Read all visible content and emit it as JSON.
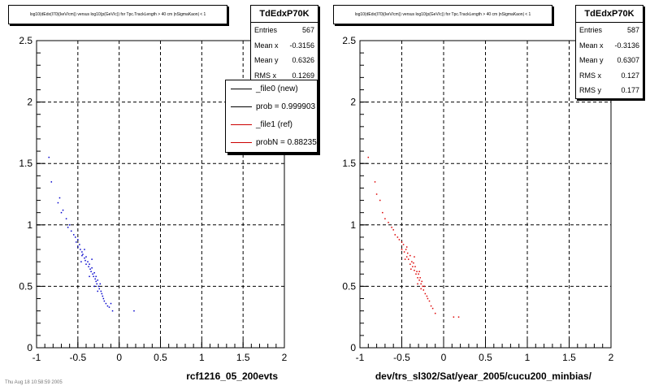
{
  "panels": [
    {
      "title": "log10(dEdx(I70)(keV/cm)) versus log10(p(GeV/c)) for Tpc.TrackLength > 40 cm |nSigmaKaon| < 1",
      "stats": {
        "name": "TdEdxP70K",
        "rows": [
          {
            "key": "Entries",
            "value": "567"
          },
          {
            "key": "Mean x",
            "value": "-0.3156"
          },
          {
            "key": "Mean y",
            "value": "0.6326"
          },
          {
            "key": "RMS x",
            "value": "0.1269"
          }
        ]
      },
      "legend": [
        {
          "label": "_file0 (new)",
          "color": "#000000"
        },
        {
          "label": "prob = 0.999903",
          "color": "#000000"
        },
        {
          "label": "_file1 (ref)",
          "color": "#cc0000"
        },
        {
          "label": "probN = 0.882353",
          "color": "#cc0000"
        }
      ],
      "footer": "rcf1216_05_200evts"
    },
    {
      "title": "log10(dEdx(I70)(keV/cm)) versus log10(p(GeV/c)) for Tpc.TrackLength > 40 cm |nSigmaKaon| < 1",
      "stats": {
        "name": "TdEdxP70K",
        "rows": [
          {
            "key": "Entries",
            "value": "587"
          },
          {
            "key": "Mean x",
            "value": "-0.3136"
          },
          {
            "key": "Mean y",
            "value": "0.6307"
          },
          {
            "key": "RMS x",
            "value": "0.127"
          },
          {
            "key": "RMS y",
            "value": "0.177"
          }
        ]
      },
      "footer": "dev/trs_sl302/Sat/year_2005/cucu200_minbias/"
    }
  ],
  "faint_text": "Thu Aug 18 10:58:59 2005",
  "chart_data": [
    {
      "type": "scatter",
      "title": "log10(dEdx(I70)(keV/cm)) versus log10(p(GeV/c)) for Tpc.TrackLength > 40 cm |nSigmaKaon| < 1",
      "xlim": [
        -1,
        2
      ],
      "ylim": [
        0,
        2.5
      ],
      "xticks": [
        "-1",
        "-0.5",
        "0",
        "0.5",
        "1",
        "1.5",
        "2"
      ],
      "yticks": [
        "0",
        "0.5",
        "1",
        "1.5",
        "2",
        "2.5"
      ],
      "grid": true,
      "color": "#0000cc",
      "points": [
        [
          -0.85,
          1.55
        ],
        [
          -0.82,
          1.35
        ],
        [
          -0.72,
          1.22
        ],
        [
          -0.74,
          1.18
        ],
        [
          -0.7,
          1.1
        ],
        [
          -0.68,
          1.12
        ],
        [
          -0.64,
          1.05
        ],
        [
          -0.62,
          0.98
        ],
        [
          -0.6,
          1.0
        ],
        [
          -0.58,
          0.95
        ],
        [
          -0.55,
          0.92
        ],
        [
          -0.53,
          0.9
        ],
        [
          -0.52,
          0.86
        ],
        [
          -0.5,
          0.88
        ],
        [
          -0.5,
          0.82
        ],
        [
          -0.48,
          0.84
        ],
        [
          -0.47,
          0.8
        ],
        [
          -0.45,
          0.78
        ],
        [
          -0.45,
          0.75
        ],
        [
          -0.44,
          0.76
        ],
        [
          -0.42,
          0.73
        ],
        [
          -0.41,
          0.71
        ],
        [
          -0.4,
          0.74
        ],
        [
          -0.4,
          0.68
        ],
        [
          -0.38,
          0.7
        ],
        [
          -0.37,
          0.66
        ],
        [
          -0.36,
          0.68
        ],
        [
          -0.35,
          0.64
        ],
        [
          -0.34,
          0.62
        ],
        [
          -0.33,
          0.65
        ],
        [
          -0.32,
          0.6
        ],
        [
          -0.31,
          0.58
        ],
        [
          -0.3,
          0.61
        ],
        [
          -0.29,
          0.56
        ],
        [
          -0.28,
          0.54
        ],
        [
          -0.28,
          0.58
        ],
        [
          -0.27,
          0.52
        ],
        [
          -0.26,
          0.55
        ],
        [
          -0.25,
          0.5
        ],
        [
          -0.24,
          0.48
        ],
        [
          -0.23,
          0.52
        ],
        [
          -0.22,
          0.46
        ],
        [
          -0.21,
          0.44
        ],
        [
          -0.2,
          0.42
        ],
        [
          -0.19,
          0.4
        ],
        [
          -0.18,
          0.38
        ],
        [
          -0.16,
          0.36
        ],
        [
          -0.14,
          0.34
        ],
        [
          -0.12,
          0.33
        ],
        [
          -0.1,
          0.36
        ],
        [
          -0.08,
          0.3
        ],
        [
          0.18,
          0.3
        ],
        [
          -0.46,
          0.7
        ],
        [
          -0.36,
          0.58
        ],
        [
          -0.3,
          0.5
        ],
        [
          -0.26,
          0.46
        ],
        [
          -0.42,
          0.8
        ],
        [
          -0.33,
          0.72
        ]
      ]
    },
    {
      "type": "scatter",
      "title": "log10(dEdx(I70)(keV/cm)) versus log10(p(GeV/c)) for Tpc.TrackLength > 40 cm |nSigmaKaon| < 1",
      "xlim": [
        -1,
        2
      ],
      "ylim": [
        0,
        2.5
      ],
      "xticks": [
        "-1",
        "-0.5",
        "0",
        "0.5",
        "1",
        "1.5",
        "2"
      ],
      "yticks": [
        "0",
        "0.5",
        "1",
        "1.5",
        "2",
        "2.5"
      ],
      "grid": true,
      "color": "#dd0000",
      "points": [
        [
          -0.9,
          1.55
        ],
        [
          -0.82,
          1.35
        ],
        [
          -0.8,
          1.25
        ],
        [
          -0.76,
          1.2
        ],
        [
          -0.73,
          1.1
        ],
        [
          -0.7,
          1.05
        ],
        [
          -0.66,
          1.02
        ],
        [
          -0.62,
          0.98
        ],
        [
          -0.6,
          0.96
        ],
        [
          -0.58,
          0.92
        ],
        [
          -0.55,
          0.9
        ],
        [
          -0.53,
          0.88
        ],
        [
          -0.5,
          0.86
        ],
        [
          -0.5,
          0.8
        ],
        [
          -0.48,
          0.84
        ],
        [
          -0.47,
          0.78
        ],
        [
          -0.45,
          0.8
        ],
        [
          -0.44,
          0.74
        ],
        [
          -0.43,
          0.77
        ],
        [
          -0.42,
          0.72
        ],
        [
          -0.4,
          0.75
        ],
        [
          -0.4,
          0.68
        ],
        [
          -0.38,
          0.7
        ],
        [
          -0.37,
          0.66
        ],
        [
          -0.36,
          0.69
        ],
        [
          -0.35,
          0.63
        ],
        [
          -0.34,
          0.66
        ],
        [
          -0.33,
          0.6
        ],
        [
          -0.32,
          0.62
        ],
        [
          -0.31,
          0.57
        ],
        [
          -0.3,
          0.6
        ],
        [
          -0.29,
          0.55
        ],
        [
          -0.28,
          0.57
        ],
        [
          -0.27,
          0.52
        ],
        [
          -0.26,
          0.54
        ],
        [
          -0.25,
          0.5
        ],
        [
          -0.24,
          0.47
        ],
        [
          -0.23,
          0.5
        ],
        [
          -0.22,
          0.44
        ],
        [
          -0.2,
          0.42
        ],
        [
          -0.19,
          0.4
        ],
        [
          -0.17,
          0.38
        ],
        [
          -0.15,
          0.34
        ],
        [
          -0.13,
          0.32
        ],
        [
          -0.1,
          0.28
        ],
        [
          0.12,
          0.25
        ],
        [
          0.18,
          0.25
        ],
        [
          -0.46,
          0.72
        ],
        [
          -0.39,
          0.64
        ],
        [
          -0.31,
          0.52
        ],
        [
          -0.27,
          0.48
        ],
        [
          -0.44,
          0.82
        ],
        [
          -0.35,
          0.74
        ],
        [
          -0.29,
          0.62
        ]
      ]
    }
  ]
}
